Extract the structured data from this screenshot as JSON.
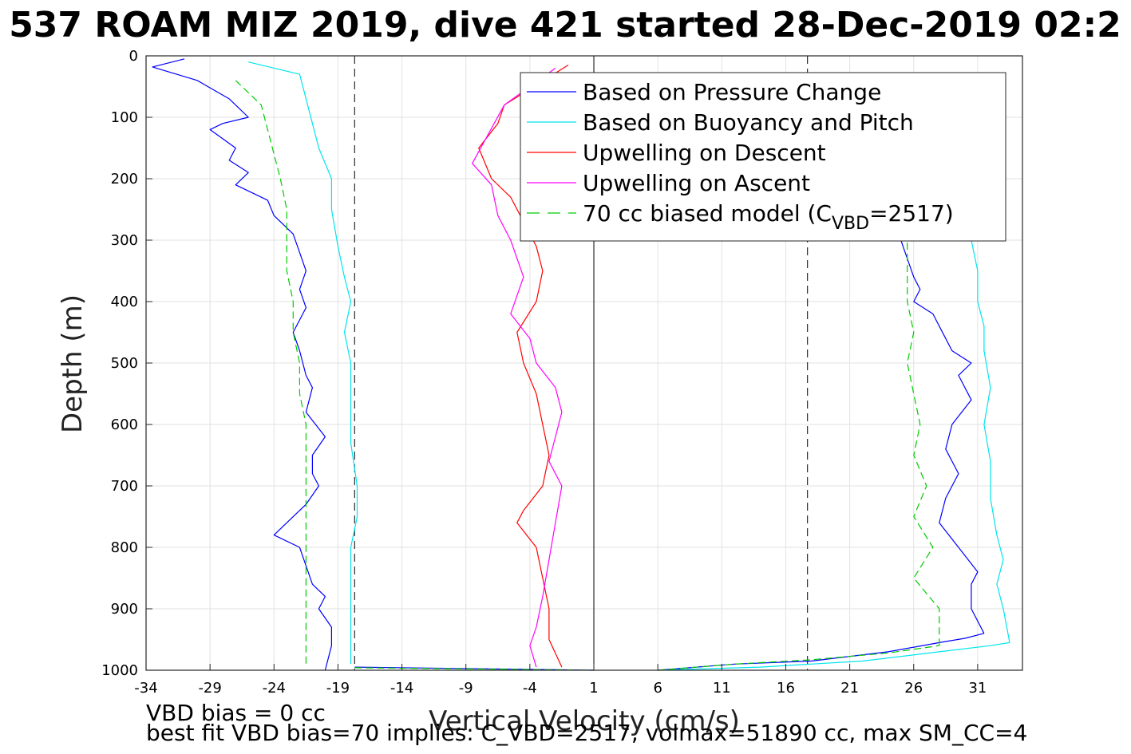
{
  "chart_data": {
    "type": "line",
    "title": "537 ROAM MIZ 2019, dive 421 started 28-Dec-2019 02:2",
    "xlabel": "Vertical Velocity (cm/s)",
    "ylabel": "Depth (m)",
    "xlim": [
      -34,
      34.5
    ],
    "ylim": [
      0,
      1000
    ],
    "y_reversed": true,
    "grid": true,
    "xticks": [
      -34,
      -29,
      -24,
      -19,
      -14,
      -9,
      -4,
      1,
      6,
      11,
      16,
      21,
      26,
      31
    ],
    "yticks": [
      0,
      100,
      200,
      300,
      400,
      500,
      600,
      700,
      800,
      900,
      1000
    ],
    "reference_lines": {
      "solid_x": [
        1
      ],
      "dashed_x": [
        -17.7,
        17.7
      ]
    },
    "legend_position": "top-right",
    "series": [
      {
        "name": "Based on Pressure Change",
        "color": "#0000ff",
        "style": "solid",
        "segments": [
          {
            "x": [
              -31,
              -33.5,
              -30,
              -27.5,
              -26,
              -28,
              -29,
              -27,
              -27.5,
              -26,
              -27,
              -24.5,
              -24,
              -22.5,
              -22,
              -21.5,
              -22,
              -21.5,
              -22.5,
              -22,
              -21.5,
              -21,
              -21.5,
              -20,
              -21,
              -21,
              -20.5,
              -21.5,
              -23,
              -24,
              -22,
              -21.5,
              -21,
              -20,
              -20.5,
              -19.5,
              -19.5,
              -20
            ],
            "y": [
              5,
              18,
              40,
              70,
              100,
              110,
              120,
              150,
              170,
              190,
              210,
              235,
              260,
              290,
              320,
              350,
              380,
              410,
              450,
              480,
              520,
              540,
              580,
              620,
              650,
              680,
              700,
              730,
              760,
              780,
              800,
              830,
              860,
              880,
              900,
              930,
              960,
              1000
            ]
          },
          {
            "x": [
              -17.7,
              1
            ],
            "y": [
              995,
              1000
            ]
          },
          {
            "x": [
              6,
              12,
              18,
              24,
              28,
              30,
              31.5
            ],
            "y": [
              1000,
              990,
              985,
              970,
              955,
              948,
              940
            ]
          },
          {
            "x": [
              31.5,
              30.5,
              30.5,
              31,
              29.5,
              28,
              28.5,
              29.5,
              28.5,
              29,
              30.5,
              29.5,
              30.5,
              29,
              28.5,
              28,
              27.5,
              26,
              26.5,
              26,
              25.5,
              25
            ],
            "y": [
              940,
              900,
              860,
              840,
              800,
              760,
              720,
              680,
              640,
              600,
              560,
              520,
              500,
              480,
              460,
              440,
              420,
              400,
              380,
              360,
              330,
              300
            ]
          }
        ]
      },
      {
        "name": "Based on Buoyancy and Pitch",
        "color": "#00e5ee",
        "style": "solid",
        "segments": [
          {
            "x": [
              -26,
              -22,
              -21.5,
              -21,
              -20.5,
              -19.5,
              -19.5,
              -19,
              -18.5,
              -18,
              -18.5,
              -18,
              -18,
              -18,
              -18,
              -17.5,
              -17.5,
              -18,
              -18,
              -18,
              -18
            ],
            "y": [
              10,
              30,
              70,
              110,
              150,
              200,
              250,
              310,
              360,
              400,
              450,
              500,
              530,
              580,
              630,
              700,
              750,
              800,
              860,
              920,
              990
            ]
          },
          {
            "x": [
              6,
              14,
              22,
              28,
              32,
              33.5
            ],
            "y": [
              1000,
              995,
              985,
              970,
              960,
              955
            ]
          },
          {
            "x": [
              33.5,
              33,
              32.5,
              33,
              32.5,
              32,
              32,
              31.5,
              32,
              31.5,
              31.5,
              31,
              31,
              30.5
            ],
            "y": [
              955,
              900,
              860,
              820,
              780,
              720,
              660,
              600,
              540,
              480,
              440,
              400,
              350,
              300
            ]
          }
        ]
      },
      {
        "name": "Upwelling on Descent",
        "color": "#ff0000",
        "style": "solid",
        "segments": [
          {
            "x": [
              -1,
              -6,
              -6.5,
              -8,
              -7,
              -5.5,
              -4.5,
              -3.5,
              -3,
              -3.5,
              -5,
              -4.5,
              -3.5,
              -3,
              -2.5,
              -3,
              -4.5,
              -5,
              -3.5,
              -3,
              -2.5,
              -2.5,
              -1.5
            ],
            "y": [
              15,
              80,
              110,
              150,
              200,
              230,
              270,
              310,
              350,
              400,
              450,
              500,
              550,
              600,
              650,
              700,
              740,
              760,
              800,
              850,
              900,
              950,
              995
            ]
          }
        ]
      },
      {
        "name": "Upwelling on Ascent",
        "color": "#ff00ff",
        "style": "solid",
        "segments": [
          {
            "x": [
              -2,
              -6,
              -8.5,
              -7,
              -6.5,
              -5.5,
              -4.5,
              -5.5,
              -4,
              -3.5,
              -2,
              -1.5,
              -2,
              -2.5,
              -1.5,
              -2,
              -2.5,
              -3,
              -3.5,
              -4,
              -3.5
            ],
            "y": [
              20,
              80,
              175,
              210,
              260,
              300,
              360,
              420,
              460,
              500,
              540,
              580,
              620,
              660,
              700,
              760,
              820,
              880,
              930,
              960,
              995
            ]
          }
        ]
      },
      {
        "name": "70 cc biased model (C_VBD=2517)",
        "legend_label_main": "70 cc biased model (C",
        "legend_label_sub": "VBD",
        "legend_label_tail": "=2517)",
        "color": "#00cc00",
        "style": "dashed",
        "segments": [
          {
            "x": [
              -27,
              -25,
              -24.5,
              -24,
              -23.5,
              -23,
              -23,
              -23,
              -22.5,
              -22.5,
              -22,
              -22,
              -21.5,
              -21.5,
              -21.5,
              -21.5,
              -21.5,
              -21.5
            ],
            "y": [
              40,
              80,
              120,
              160,
              200,
              250,
              300,
              350,
              400,
              450,
              500,
              550,
              600,
              650,
              700,
              780,
              850,
              990
            ]
          },
          {
            "x": [
              -17.7,
              1
            ],
            "y": [
              996,
              1000
            ]
          },
          {
            "x": [
              6,
              12,
              18,
              24,
              28
            ],
            "y": [
              1000,
              990,
              983,
              972,
              960
            ]
          },
          {
            "x": [
              28,
              28,
              26,
              27.5,
              26,
              27,
              26,
              26.5,
              26,
              25.5,
              26,
              25.5,
              25.5
            ],
            "y": [
              960,
              900,
              850,
              800,
              750,
              700,
              650,
              600,
              550,
              500,
              450,
              400,
              300
            ]
          }
        ]
      }
    ],
    "annotations": [
      "VBD bias = 0 cc",
      "best fit VBD bias=70 implies: C_VBD=2517, volmax=51890 cc, max SM_CC=4"
    ]
  }
}
